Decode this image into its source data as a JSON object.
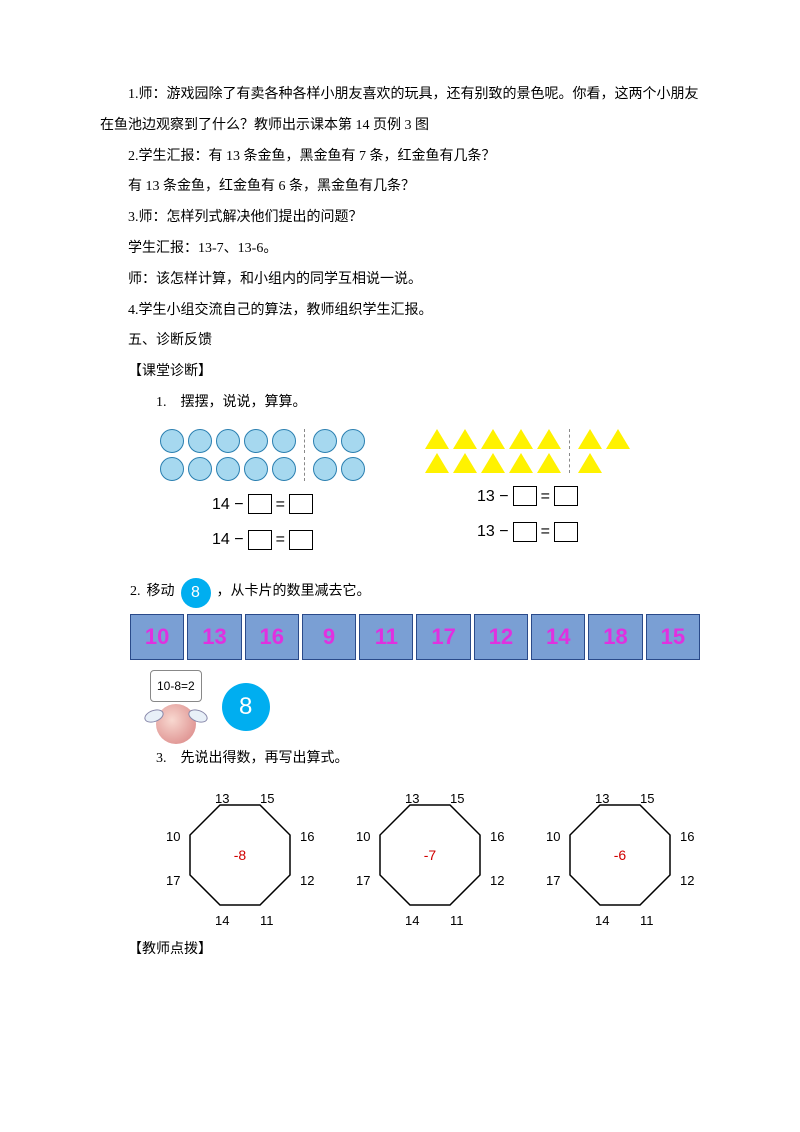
{
  "p1": "1.师：游戏园除了有卖各种各样小朋友喜欢的玩具，还有别致的景色呢。你看，这两个小朋友在鱼池边观察到了什么？教师出示课本第 14 页例 3 图",
  "p2": "2.学生汇报：有 13 条金鱼，黑金鱼有 7 条，红金鱼有几条？",
  "p3": "有 13 条金鱼，红金鱼有 6 条，黑金鱼有几条？",
  "p4": "3.师：怎样列式解决他们提出的问题？",
  "p5": "学生汇报：13-7、13-6。",
  "p6": "师：该怎样计算，和小组内的同学互相说一说。",
  "p7": "4.学生小组交流自己的算法，教师组织学生汇报。",
  "sec5": "五、诊断反馈",
  "diag_title": "【课堂诊断】",
  "ex1_title": "1.　摆摆，说说，算算。",
  "ex1": {
    "circles_total": 14,
    "tris_total": 13,
    "circle_fill": "#a6d8ef",
    "circle_stroke": "#2a7fb0",
    "tri_fill": "#fff200",
    "eq_left_a": "14 −",
    "eq_left_b": "14 −",
    "eq_right_a": "13 −",
    "eq_right_b": "13 −",
    "equals": "="
  },
  "ex2_pre": "2.",
  "ex2_prompt_a": "移动",
  "ex2_chip": "8",
  "ex2_prompt_b": "，从卡片的数里减去它。",
  "ex2_cards": [
    "10",
    "13",
    "16",
    "9",
    "11",
    "17",
    "12",
    "14",
    "18",
    "15"
  ],
  "ex2_card_bg": "#7a9fd4",
  "ex2_card_fg": "#e030e0",
  "ex2_bubble": "10-8=2",
  "ex2_ball": "8",
  "ex3_title": "3.　先说出得数，再写出算式。",
  "octa": {
    "labels": [
      "13",
      "15",
      "16",
      "12",
      "11",
      "14",
      "17",
      "10"
    ],
    "centers": [
      "-8",
      "-7",
      "-6"
    ],
    "label_positions": [
      {
        "l": 55,
        "t": 0
      },
      {
        "l": 100,
        "t": 0
      },
      {
        "l": 140,
        "t": 38
      },
      {
        "l": 140,
        "t": 82
      },
      {
        "l": 100,
        "t": 122
      },
      {
        "l": 55,
        "t": 122
      },
      {
        "l": 6,
        "t": 82
      },
      {
        "l": 6,
        "t": 38
      }
    ],
    "stroke": "#000000",
    "center_color": "#d00000"
  },
  "teacher_note": "【教师点拨】"
}
